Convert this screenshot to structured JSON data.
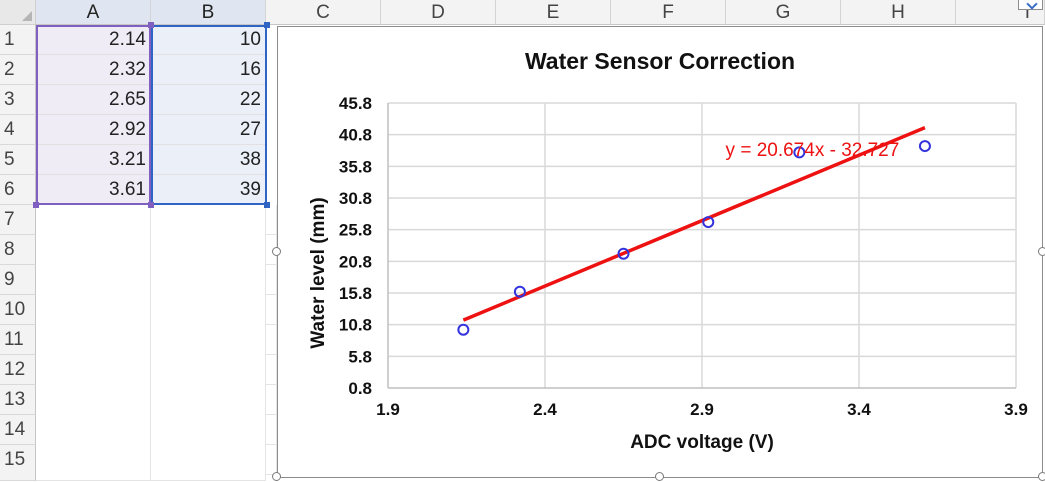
{
  "sheet": {
    "columns": [
      "A",
      "B",
      "C",
      "D",
      "E",
      "F",
      "G",
      "H",
      "I"
    ],
    "rows": [
      "1",
      "2",
      "3",
      "4",
      "5",
      "6",
      "7",
      "8",
      "9",
      "10",
      "11",
      "12",
      "13",
      "14",
      "15"
    ],
    "colA": [
      "2.14",
      "2.32",
      "2.65",
      "2.92",
      "3.21",
      "3.61"
    ],
    "colB": [
      "10",
      "16",
      "22",
      "27",
      "38",
      "39"
    ]
  },
  "chart_data": {
    "type": "scatter",
    "title": "Water Sensor Correction",
    "xlabel": "ADC voltage (V)",
    "ylabel": "Water level (mm)",
    "xlim": [
      1.9,
      3.9
    ],
    "ylim": [
      0.8,
      45.8
    ],
    "xticks": [
      1.9,
      2.4,
      2.9,
      3.4,
      3.9
    ],
    "xtick_labels": [
      "1.9",
      "2.4",
      "2.9",
      "3.4",
      "3.9"
    ],
    "yticks": [
      0.8,
      5.8,
      10.8,
      15.8,
      20.8,
      25.8,
      30.8,
      35.8,
      40.8,
      45.8
    ],
    "ytick_labels": [
      "0.8",
      "5.8",
      "10.8",
      "15.8",
      "20.8",
      "25.8",
      "30.8",
      "35.8",
      "40.8",
      "45.8"
    ],
    "series": [
      {
        "name": "Water level",
        "x": [
          2.14,
          2.32,
          2.65,
          2.92,
          3.21,
          3.61
        ],
        "y": [
          10,
          16,
          22,
          27,
          38,
          39
        ]
      }
    ],
    "trendline": {
      "slope": 20.674,
      "intercept": -32.727,
      "x_range": [
        2.14,
        3.61
      ],
      "label": "y = 20.674x - 32.727",
      "color": "#ee1111"
    },
    "marker_color": "#3333dd",
    "grid": true
  }
}
